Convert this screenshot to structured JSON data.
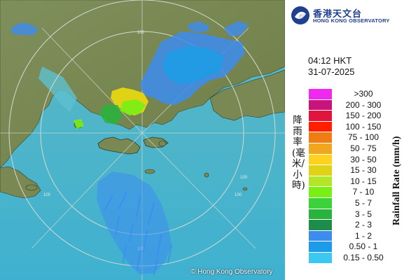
{
  "organization": {
    "name_cn": "香港天文台",
    "name_en": "HONG KONG OBSERVATORY",
    "logo": "hko-logo-icon"
  },
  "timestamp": {
    "time": "04:12 HKT",
    "date": "31-07-2025"
  },
  "legend": {
    "title_cn": "降雨率(毫米/小時)",
    "title_en": "Rainfall Rate (mm/h)",
    "items": [
      {
        "label": ">300",
        "color": "#f028f0"
      },
      {
        "label": "200 - 300",
        "color": "#c8147a"
      },
      {
        "label": "150 - 200",
        "color": "#e0143c"
      },
      {
        "label": "100 - 150",
        "color": "#ff1e00"
      },
      {
        "label": "75 - 100",
        "color": "#f07d14"
      },
      {
        "label": "50 - 75",
        "color": "#f0a61e"
      },
      {
        "label": "30 - 50",
        "color": "#ffd21e"
      },
      {
        "label": "15 - 30",
        "color": "#e0d214"
      },
      {
        "label": "10 - 15",
        "color": "#b4e628"
      },
      {
        "label": "7 - 10",
        "color": "#78f014"
      },
      {
        "label": "5 - 7",
        "color": "#3cd23c"
      },
      {
        "label": "3 - 5",
        "color": "#28b43c"
      },
      {
        "label": "2 - 3",
        "color": "#1e8c4b"
      },
      {
        "label": "1 - 2",
        "color": "#3c8cf0"
      },
      {
        "label": "0.50 - 1",
        "color": "#1e9be6"
      },
      {
        "label": "0.15 - 0.50",
        "color": "#3cc8f0"
      }
    ]
  },
  "map": {
    "range_labels": [
      "100",
      "100",
      "100",
      "100",
      "100"
    ],
    "copyright": "© Hong Kong Observatory"
  },
  "colors": {
    "sea": "#4fb6c8",
    "land": "#7c8a58",
    "ring": "#c8d2c8"
  }
}
